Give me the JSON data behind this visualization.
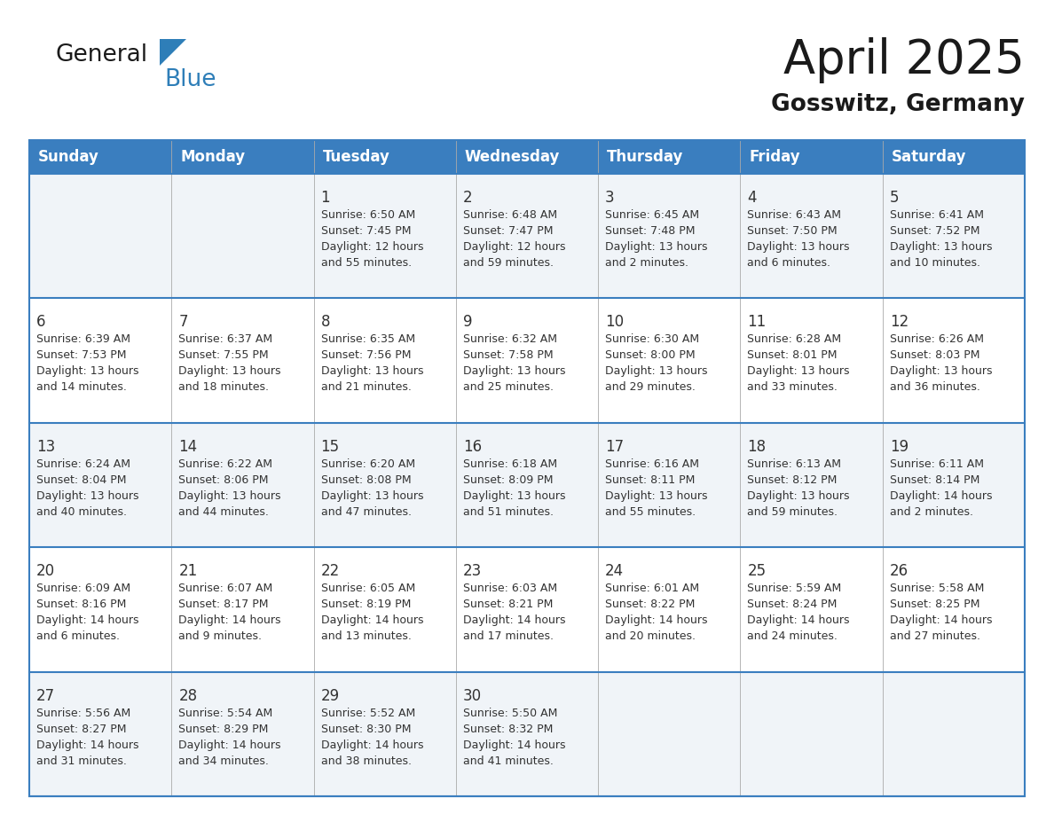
{
  "title": "April 2025",
  "subtitle": "Gosswitz, Germany",
  "days_of_week": [
    "Sunday",
    "Monday",
    "Tuesday",
    "Wednesday",
    "Thursday",
    "Friday",
    "Saturday"
  ],
  "header_bg": "#3a7ebf",
  "header_text_color": "#FFFFFF",
  "row_bg_light": "#f0f4f8",
  "row_bg_white": "#FFFFFF",
  "text_color": "#333333",
  "border_color": "#3a7ebf",
  "title_color": "#1a1a1a",
  "subtitle_color": "#1a1a1a",
  "logo_general_color": "#1a1a1a",
  "logo_blue_color": "#2E7EB8",
  "calendar_data": [
    [
      {
        "day": "",
        "sunrise": "",
        "sunset": "",
        "daylight": ""
      },
      {
        "day": "",
        "sunrise": "",
        "sunset": "",
        "daylight": ""
      },
      {
        "day": "1",
        "sunrise": "Sunrise: 6:50 AM",
        "sunset": "Sunset: 7:45 PM",
        "daylight": "Daylight: 12 hours\nand 55 minutes."
      },
      {
        "day": "2",
        "sunrise": "Sunrise: 6:48 AM",
        "sunset": "Sunset: 7:47 PM",
        "daylight": "Daylight: 12 hours\nand 59 minutes."
      },
      {
        "day": "3",
        "sunrise": "Sunrise: 6:45 AM",
        "sunset": "Sunset: 7:48 PM",
        "daylight": "Daylight: 13 hours\nand 2 minutes."
      },
      {
        "day": "4",
        "sunrise": "Sunrise: 6:43 AM",
        "sunset": "Sunset: 7:50 PM",
        "daylight": "Daylight: 13 hours\nand 6 minutes."
      },
      {
        "day": "5",
        "sunrise": "Sunrise: 6:41 AM",
        "sunset": "Sunset: 7:52 PM",
        "daylight": "Daylight: 13 hours\nand 10 minutes."
      }
    ],
    [
      {
        "day": "6",
        "sunrise": "Sunrise: 6:39 AM",
        "sunset": "Sunset: 7:53 PM",
        "daylight": "Daylight: 13 hours\nand 14 minutes."
      },
      {
        "day": "7",
        "sunrise": "Sunrise: 6:37 AM",
        "sunset": "Sunset: 7:55 PM",
        "daylight": "Daylight: 13 hours\nand 18 minutes."
      },
      {
        "day": "8",
        "sunrise": "Sunrise: 6:35 AM",
        "sunset": "Sunset: 7:56 PM",
        "daylight": "Daylight: 13 hours\nand 21 minutes."
      },
      {
        "day": "9",
        "sunrise": "Sunrise: 6:32 AM",
        "sunset": "Sunset: 7:58 PM",
        "daylight": "Daylight: 13 hours\nand 25 minutes."
      },
      {
        "day": "10",
        "sunrise": "Sunrise: 6:30 AM",
        "sunset": "Sunset: 8:00 PM",
        "daylight": "Daylight: 13 hours\nand 29 minutes."
      },
      {
        "day": "11",
        "sunrise": "Sunrise: 6:28 AM",
        "sunset": "Sunset: 8:01 PM",
        "daylight": "Daylight: 13 hours\nand 33 minutes."
      },
      {
        "day": "12",
        "sunrise": "Sunrise: 6:26 AM",
        "sunset": "Sunset: 8:03 PM",
        "daylight": "Daylight: 13 hours\nand 36 minutes."
      }
    ],
    [
      {
        "day": "13",
        "sunrise": "Sunrise: 6:24 AM",
        "sunset": "Sunset: 8:04 PM",
        "daylight": "Daylight: 13 hours\nand 40 minutes."
      },
      {
        "day": "14",
        "sunrise": "Sunrise: 6:22 AM",
        "sunset": "Sunset: 8:06 PM",
        "daylight": "Daylight: 13 hours\nand 44 minutes."
      },
      {
        "day": "15",
        "sunrise": "Sunrise: 6:20 AM",
        "sunset": "Sunset: 8:08 PM",
        "daylight": "Daylight: 13 hours\nand 47 minutes."
      },
      {
        "day": "16",
        "sunrise": "Sunrise: 6:18 AM",
        "sunset": "Sunset: 8:09 PM",
        "daylight": "Daylight: 13 hours\nand 51 minutes."
      },
      {
        "day": "17",
        "sunrise": "Sunrise: 6:16 AM",
        "sunset": "Sunset: 8:11 PM",
        "daylight": "Daylight: 13 hours\nand 55 minutes."
      },
      {
        "day": "18",
        "sunrise": "Sunrise: 6:13 AM",
        "sunset": "Sunset: 8:12 PM",
        "daylight": "Daylight: 13 hours\nand 59 minutes."
      },
      {
        "day": "19",
        "sunrise": "Sunrise: 6:11 AM",
        "sunset": "Sunset: 8:14 PM",
        "daylight": "Daylight: 14 hours\nand 2 minutes."
      }
    ],
    [
      {
        "day": "20",
        "sunrise": "Sunrise: 6:09 AM",
        "sunset": "Sunset: 8:16 PM",
        "daylight": "Daylight: 14 hours\nand 6 minutes."
      },
      {
        "day": "21",
        "sunrise": "Sunrise: 6:07 AM",
        "sunset": "Sunset: 8:17 PM",
        "daylight": "Daylight: 14 hours\nand 9 minutes."
      },
      {
        "day": "22",
        "sunrise": "Sunrise: 6:05 AM",
        "sunset": "Sunset: 8:19 PM",
        "daylight": "Daylight: 14 hours\nand 13 minutes."
      },
      {
        "day": "23",
        "sunrise": "Sunrise: 6:03 AM",
        "sunset": "Sunset: 8:21 PM",
        "daylight": "Daylight: 14 hours\nand 17 minutes."
      },
      {
        "day": "24",
        "sunrise": "Sunrise: 6:01 AM",
        "sunset": "Sunset: 8:22 PM",
        "daylight": "Daylight: 14 hours\nand 20 minutes."
      },
      {
        "day": "25",
        "sunrise": "Sunrise: 5:59 AM",
        "sunset": "Sunset: 8:24 PM",
        "daylight": "Daylight: 14 hours\nand 24 minutes."
      },
      {
        "day": "26",
        "sunrise": "Sunrise: 5:58 AM",
        "sunset": "Sunset: 8:25 PM",
        "daylight": "Daylight: 14 hours\nand 27 minutes."
      }
    ],
    [
      {
        "day": "27",
        "sunrise": "Sunrise: 5:56 AM",
        "sunset": "Sunset: 8:27 PM",
        "daylight": "Daylight: 14 hours\nand 31 minutes."
      },
      {
        "day": "28",
        "sunrise": "Sunrise: 5:54 AM",
        "sunset": "Sunset: 8:29 PM",
        "daylight": "Daylight: 14 hours\nand 34 minutes."
      },
      {
        "day": "29",
        "sunrise": "Sunrise: 5:52 AM",
        "sunset": "Sunset: 8:30 PM",
        "daylight": "Daylight: 14 hours\nand 38 minutes."
      },
      {
        "day": "30",
        "sunrise": "Sunrise: 5:50 AM",
        "sunset": "Sunset: 8:32 PM",
        "daylight": "Daylight: 14 hours\nand 41 minutes."
      },
      {
        "day": "",
        "sunrise": "",
        "sunset": "",
        "daylight": ""
      },
      {
        "day": "",
        "sunrise": "",
        "sunset": "",
        "daylight": ""
      },
      {
        "day": "",
        "sunrise": "",
        "sunset": "",
        "daylight": ""
      }
    ]
  ]
}
